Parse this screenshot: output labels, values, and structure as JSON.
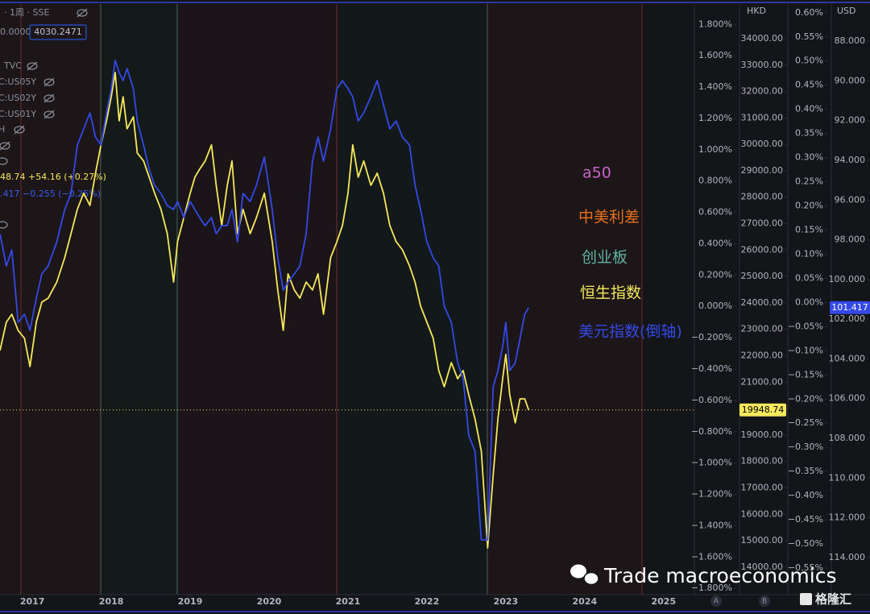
{
  "header": {
    "symbol": "· 1周 · SSE",
    "value_left": "0.0000",
    "value_box": "4030.2471",
    "indicators": [
      "TVC",
      "C:US05Y",
      "C:US02Y",
      "C:US01Y",
      "H"
    ],
    "hsi_readout": "48.74  +54.16 (+0.27%)",
    "usd_readout": ".417  −0.255 (−0.25%)"
  },
  "chart_data": {
    "type": "line",
    "ylabel": "HKD",
    "y2label": "USD",
    "annotations": [
      {
        "text": "a50",
        "color": "#c864c8"
      },
      {
        "text": "中美利差",
        "color": "#e8701a"
      },
      {
        "text": "创业板",
        "color": "#5fb3a0"
      }
    ],
    "x": [
      2016.59,
      2016.67,
      2016.74,
      2016.82,
      2016.9,
      2016.97,
      2017.05,
      2017.12,
      2017.2,
      2017.31,
      2017.41,
      2017.49,
      2017.57,
      2017.65,
      2017.73,
      2017.8,
      2017.87,
      2017.94,
      2018.0,
      2018.05,
      2018.1,
      2018.15,
      2018.2,
      2018.28,
      2018.33,
      2018.41,
      2018.48,
      2018.55,
      2018.63,
      2018.71,
      2018.79,
      2018.84,
      2018.92,
      2019.0,
      2019.06,
      2019.12,
      2019.19,
      2019.27,
      2019.33,
      2019.4,
      2019.47,
      2019.53,
      2019.6,
      2019.67,
      2019.76,
      2019.84,
      2019.94,
      2020.04,
      2020.11,
      2020.18,
      2020.24,
      2020.32,
      2020.39,
      2020.47,
      2020.55,
      2020.62,
      2020.69,
      2020.78,
      2020.86,
      2020.93,
      2021.0,
      2021.06,
      2021.13,
      2021.2,
      2021.29,
      2021.37,
      2021.45,
      2021.53,
      2021.61,
      2021.69,
      2021.78,
      2021.85,
      2021.92,
      2022.0,
      2022.08,
      2022.15,
      2022.22,
      2022.31,
      2022.39,
      2022.46,
      2022.53,
      2022.61,
      2022.69,
      2022.77,
      2022.84,
      2022.9,
      2022.96,
      2023.0,
      2023.05,
      2023.12,
      2023.18,
      2023.24,
      2023.29
    ],
    "series": [
      {
        "name": "恒生指数",
        "color": "#f6e85c",
        "values": [
          22200,
          23270,
          23570,
          22960,
          22660,
          21590,
          23270,
          24030,
          24180,
          24790,
          25710,
          26620,
          27540,
          28150,
          27690,
          28910,
          29980,
          30890,
          31800,
          32720,
          30890,
          31800,
          30590,
          31040,
          29670,
          29370,
          28760,
          28150,
          27540,
          26620,
          24790,
          26320,
          27230,
          28150,
          28760,
          29060,
          29370,
          29980,
          28450,
          26930,
          28450,
          29370,
          26620,
          27540,
          26620,
          27230,
          28150,
          26320,
          24490,
          22960,
          25100,
          24490,
          24180,
          24790,
          24490,
          25100,
          23570,
          25710,
          26320,
          26930,
          28150,
          29980,
          28760,
          29370,
          28450,
          28910,
          28150,
          26930,
          26320,
          26010,
          25400,
          24790,
          23880,
          23270,
          22660,
          21440,
          20830,
          21740,
          21130,
          21440,
          20520,
          19610,
          18390,
          14730,
          17480,
          19610,
          21130,
          22050,
          20520,
          19460,
          20370,
          20370,
          19948.74
        ]
      },
      {
        "name": "美元指数(倒轴)",
        "color": "#3449e6",
        "axis": "y2",
        "values": [
          97.7,
          99.32,
          98.51,
          102.16,
          101.75,
          102.56,
          100.94,
          99.72,
          99.32,
          98.1,
          96.48,
          95.67,
          93.23,
          92.42,
          91.61,
          92.83,
          93.23,
          91.61,
          90.39,
          88.97,
          89.58,
          89.99,
          89.38,
          90.39,
          92.02,
          93.23,
          94.45,
          95.26,
          95.67,
          96.28,
          96.48,
          96.07,
          96.88,
          96.07,
          96.48,
          96.88,
          97.29,
          96.88,
          97.7,
          97.29,
          97.29,
          96.48,
          98.1,
          95.67,
          96.07,
          95.26,
          93.84,
          96.48,
          98.91,
          100.54,
          100.13,
          99.72,
          99.32,
          97.7,
          94.04,
          92.83,
          94.04,
          92.42,
          90.39,
          89.99,
          90.39,
          90.8,
          92.02,
          91.61,
          90.8,
          89.99,
          91.21,
          92.42,
          92.02,
          92.83,
          93.23,
          95.26,
          96.48,
          98.1,
          98.91,
          99.32,
          101.35,
          102.16,
          104.19,
          105.0,
          107.84,
          108.65,
          113.11,
          113.11,
          105.4,
          104.59,
          103.38,
          102.16,
          104.59,
          104.19,
          102.97,
          101.75,
          101.417
        ]
      }
    ],
    "xlim": [
      2016.59,
      2025.39
    ],
    "xticks": [
      2017,
      2018,
      2019,
      2020,
      2021,
      2022,
      2023,
      2024,
      2025
    ],
    "ylim": [
      12960,
      35310
    ],
    "yticks": [
      {
        "value": 34000,
        "label": "34000.00"
      },
      {
        "value": 33000,
        "label": "33000.00"
      },
      {
        "value": 32000,
        "label": "32000.00"
      },
      {
        "value": 31000,
        "label": "31000.00"
      },
      {
        "value": 30000,
        "label": "30000.00"
      },
      {
        "value": 29000,
        "label": "29000.00"
      },
      {
        "value": 28000,
        "label": "28000.00"
      },
      {
        "value": 27000,
        "label": "27000.00"
      },
      {
        "value": 26000,
        "label": "26000.00"
      },
      {
        "value": 25000,
        "label": "25000.00"
      },
      {
        "value": 24000,
        "label": "24000.00"
      },
      {
        "value": 23000,
        "label": "23000.00"
      },
      {
        "value": 22000,
        "label": "22000.00"
      },
      {
        "value": 21000,
        "label": "21000.00"
      },
      {
        "value": 20000,
        "label": "20000.00"
      },
      {
        "value": 19000,
        "label": "19000.00"
      },
      {
        "value": 18000,
        "label": "18000.00"
      },
      {
        "value": 17000,
        "label": "17000.00"
      },
      {
        "value": 16000,
        "label": "16000.00"
      },
      {
        "value": 15000,
        "label": "15000.00"
      },
      {
        "value": 14000,
        "label": "14000.00"
      }
    ],
    "y2lim": [
      115.87,
      86.13
    ],
    "y2ticks": [
      {
        "value": 88,
        "label": "88.000"
      },
      {
        "value": 90,
        "label": "90.000"
      },
      {
        "value": 92,
        "label": "92.000"
      },
      {
        "value": 94,
        "label": "94.000"
      },
      {
        "value": 96,
        "label": "96.000"
      },
      {
        "value": 98,
        "label": "98.000"
      },
      {
        "value": 100,
        "label": "100.000"
      },
      {
        "value": 102,
        "label": "102.000"
      },
      {
        "value": 104,
        "label": "104.000"
      },
      {
        "value": 106,
        "label": "106.000"
      },
      {
        "value": 108,
        "label": "108.000"
      },
      {
        "value": 110,
        "label": "110.000"
      },
      {
        "value": 112,
        "label": "112.000"
      },
      {
        "value": 114,
        "label": "114.000"
      }
    ],
    "y3lim": [
      -1.84,
      1.93
    ],
    "y3ticks": [
      {
        "value": 1.8,
        "label": "1.800%"
      },
      {
        "value": 1.6,
        "label": "1.600%"
      },
      {
        "value": 1.4,
        "label": "1.400%"
      },
      {
        "value": 1.2,
        "label": "1.200%"
      },
      {
        "value": 1.0,
        "label": "1.000%"
      },
      {
        "value": 0.8,
        "label": "0.800%"
      },
      {
        "value": 0.6,
        "label": "0.600%"
      },
      {
        "value": 0.4,
        "label": "0.400%"
      },
      {
        "value": 0.2,
        "label": "0.200%"
      },
      {
        "value": 0,
        "label": "0.000%"
      },
      {
        "value": -0.2,
        "label": "−0.200%"
      },
      {
        "value": -0.4,
        "label": "−0.400%"
      },
      {
        "value": -0.6,
        "label": "−0.600%"
      },
      {
        "value": -0.8,
        "label": "−0.800%"
      },
      {
        "value": -1.0,
        "label": "−1.000%"
      },
      {
        "value": -1.2,
        "label": "−1.200%"
      },
      {
        "value": -1.4,
        "label": "−1.400%"
      },
      {
        "value": -1.6,
        "label": "−1.600%"
      },
      {
        "value": -1.8,
        "label": "−1.800%"
      }
    ],
    "y4lim": [
      -0.605,
      0.618
    ],
    "y4ticks": [
      {
        "value": 0.6,
        "label": "0.60%"
      },
      {
        "value": 0.55,
        "label": "0.55%"
      },
      {
        "value": 0.5,
        "label": "0.50%"
      },
      {
        "value": 0.45,
        "label": "0.45%"
      },
      {
        "value": 0.4,
        "label": "0.40%"
      },
      {
        "value": 0.35,
        "label": "0.35%"
      },
      {
        "value": 0.3,
        "label": "0.30%"
      },
      {
        "value": 0.25,
        "label": "0.25%"
      },
      {
        "value": 0.2,
        "label": "0.20%"
      },
      {
        "value": 0.15,
        "label": "0.15%"
      },
      {
        "value": 0.1,
        "label": "0.10%"
      },
      {
        "value": 0.05,
        "label": "0.05%"
      },
      {
        "value": 0,
        "label": "0.00%"
      },
      {
        "value": -0.05,
        "label": "−0.05%"
      },
      {
        "value": -0.1,
        "label": "−0.10%"
      },
      {
        "value": -0.15,
        "label": "−0.15%"
      },
      {
        "value": -0.2,
        "label": "−0.20%"
      },
      {
        "value": -0.25,
        "label": "−0.25%"
      },
      {
        "value": -0.3,
        "label": "−0.30%"
      },
      {
        "value": -0.35,
        "label": "−0.35%"
      },
      {
        "value": -0.4,
        "label": "−0.40%"
      },
      {
        "value": -0.45,
        "label": "−0.45%"
      },
      {
        "value": -0.5,
        "label": "−0.50%"
      },
      {
        "value": -0.55,
        "label": "−0.55%"
      }
    ]
  },
  "watermark": "Trade macroeconomics",
  "logo": "格隆汇",
  "scale_buttons": [
    "A",
    "B"
  ]
}
